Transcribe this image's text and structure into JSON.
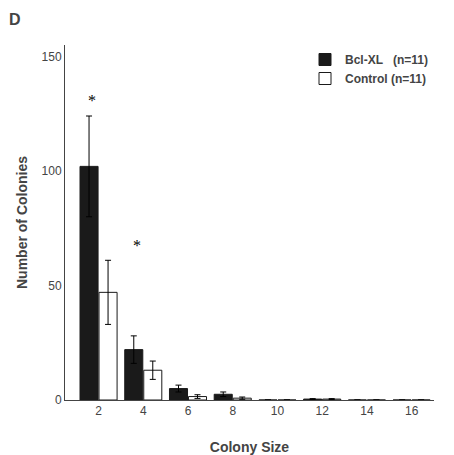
{
  "chart_data": {
    "type": "bar",
    "title": "D",
    "xlabel": "Colony Size",
    "ylabel": "Number of Colonies",
    "x": [
      2,
      4,
      6,
      8,
      10,
      12,
      14,
      16
    ],
    "series": [
      {
        "name": "Bcl-XL   (n=11)",
        "color": "#1a1a1a",
        "values": [
          102,
          22,
          5,
          2.5,
          0,
          0.4,
          0,
          0
        ],
        "errors": [
          22,
          6,
          1.5,
          1.0,
          0,
          0.2,
          0,
          0
        ]
      },
      {
        "name": "Control (n=11)",
        "color": "#ffffff",
        "values": [
          47,
          13,
          1.5,
          0.8,
          0,
          0.4,
          0,
          0
        ],
        "errors": [
          14,
          4.0,
          0.8,
          0.5,
          0,
          0.2,
          0,
          0
        ]
      }
    ],
    "xlim": [
      0.5,
      17
    ],
    "ylim": [
      0,
      155
    ],
    "xticks": [
      2,
      4,
      6,
      8,
      10,
      12,
      14,
      16
    ],
    "yticks": [
      0,
      50,
      100,
      150
    ],
    "annotations": [
      {
        "text": "*",
        "x": 1.72,
        "y": 126
      },
      {
        "text": "*",
        "x": 3.72,
        "y": 63
      }
    ],
    "legend": "upper right",
    "grid": false
  }
}
